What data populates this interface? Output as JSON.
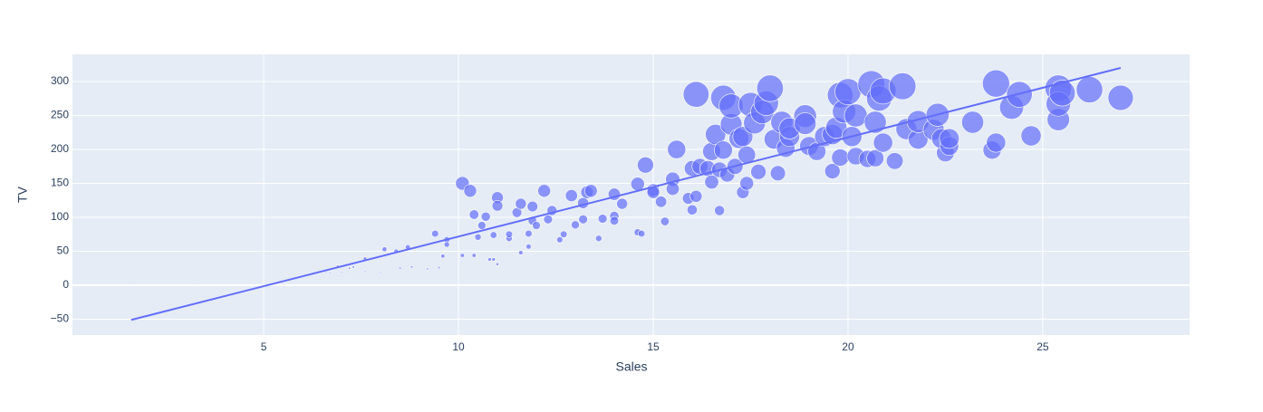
{
  "chart_data": {
    "type": "scatter",
    "x_label": "Sales",
    "y_label": "TV",
    "color": "#636efa",
    "background": "#e5ecf6",
    "grid": true,
    "xlim": [
      0.09,
      28.77
    ],
    "ylim": [
      -73.3,
      340
    ],
    "xticks": [
      5,
      10,
      15,
      20,
      25
    ],
    "yticks": [
      {
        "value": -50,
        "label": "−50"
      },
      0,
      50,
      100,
      150,
      200,
      250,
      300
    ],
    "x": [
      1.6,
      3.2,
      4.8,
      5.3,
      5.3,
      5.6,
      5.5,
      5.9,
      6.6,
      6.6,
      6.7,
      6.9,
      7.0,
      7.2,
      7.2,
      7.3,
      7.3,
      7.6,
      7.6,
      8.0,
      8.1,
      8.4,
      8.5,
      8.7,
      8.7,
      8.8,
      9.2,
      9.4,
      9.5,
      9.6,
      9.7,
      9.7,
      10.1,
      10.1,
      10.3,
      10.4,
      10.4,
      10.5,
      10.6,
      10.7,
      10.8,
      10.9,
      11.0,
      11.0,
      11.0,
      10.9,
      11.3,
      11.3,
      11.5,
      11.6,
      11.6,
      11.8,
      11.8,
      11.9,
      11.9,
      12.0,
      12.0,
      12.2,
      12.3,
      12.4,
      12.6,
      12.7,
      12.9,
      13.0,
      13.2,
      13.2,
      13.3,
      13.4,
      13.6,
      13.7,
      14.0,
      14.0,
      14.0,
      14.2,
      14.6,
      14.6,
      14.8,
      14.7,
      15.0,
      15.0,
      15.2,
      15.3,
      15.5,
      15.5,
      15.6,
      15.9,
      16.0,
      16.0,
      16.1,
      16.1,
      16.2,
      16.4,
      16.5,
      16.5,
      16.6,
      16.7,
      16.7,
      16.8,
      16.8,
      16.9,
      17.0,
      17.0,
      17.1,
      17.2,
      17.3,
      17.3,
      17.4,
      17.4,
      17.5,
      17.6,
      17.7,
      17.8,
      17.9,
      18.0,
      18.1,
      18.2,
      18.3,
      18.4,
      18.5,
      18.5,
      18.9,
      18.9,
      19.0,
      19.2,
      19.4,
      19.6,
      19.6,
      19.7,
      19.8,
      19.8,
      19.9,
      20.0,
      20.1,
      20.2,
      20.2,
      20.5,
      20.6,
      20.7,
      20.7,
      20.8,
      20.9,
      20.9,
      21.2,
      21.4,
      21.5,
      21.8,
      21.8,
      22.2,
      22.3,
      22.5,
      22.4,
      22.6,
      22.6,
      23.2,
      23.7,
      23.8,
      23.8,
      24.2,
      24.4,
      24.7,
      25.4,
      25.4,
      25.4,
      25.5,
      26.2,
      27.0
    ],
    "y": [
      0.7,
      4,
      8.7,
      13,
      5,
      13,
      7,
      17,
      8,
      19,
      18,
      28,
      19,
      25,
      9,
      27,
      12,
      39,
      20,
      18,
      53,
      50,
      25,
      56,
      17,
      27,
      24,
      76,
      26,
      43,
      67,
      60,
      44,
      150,
      139,
      104,
      44,
      71,
      88,
      101,
      38,
      74,
      31,
      129,
      117,
      38,
      69,
      75,
      107,
      48,
      120,
      57,
      76,
      116,
      95,
      88,
      17,
      139,
      97,
      110,
      67,
      75,
      132,
      89,
      97,
      121,
      137,
      139,
      69,
      98,
      102,
      95,
      134,
      120,
      149,
      78,
      177,
      76,
      140,
      137,
      123,
      94,
      156,
      142,
      200,
      128,
      172,
      111,
      131,
      281,
      175,
      172,
      197,
      152,
      222,
      170,
      110,
      276,
      199,
      163,
      237,
      264,
      175,
      216,
      137,
      219,
      150,
      192,
      266,
      239,
      167,
      255,
      268,
      290,
      215,
      165,
      240,
      202,
      219,
      231,
      249,
      238,
      205,
      197,
      219,
      168,
      222,
      232,
      188,
      280,
      256,
      285,
      219,
      190,
      250,
      186,
      296,
      240,
      187,
      275,
      286,
      210,
      183,
      293,
      230,
      215,
      241,
      229,
      251,
      195,
      216,
      205,
      216,
      240,
      199,
      297,
      210,
      262,
      281,
      220,
      290,
      244,
      267,
      283,
      288,
      276
    ],
    "trendline": {
      "color": "#636efa",
      "x": [
        1.6,
        27.0
      ],
      "y": [
        -51,
        320
      ]
    }
  }
}
